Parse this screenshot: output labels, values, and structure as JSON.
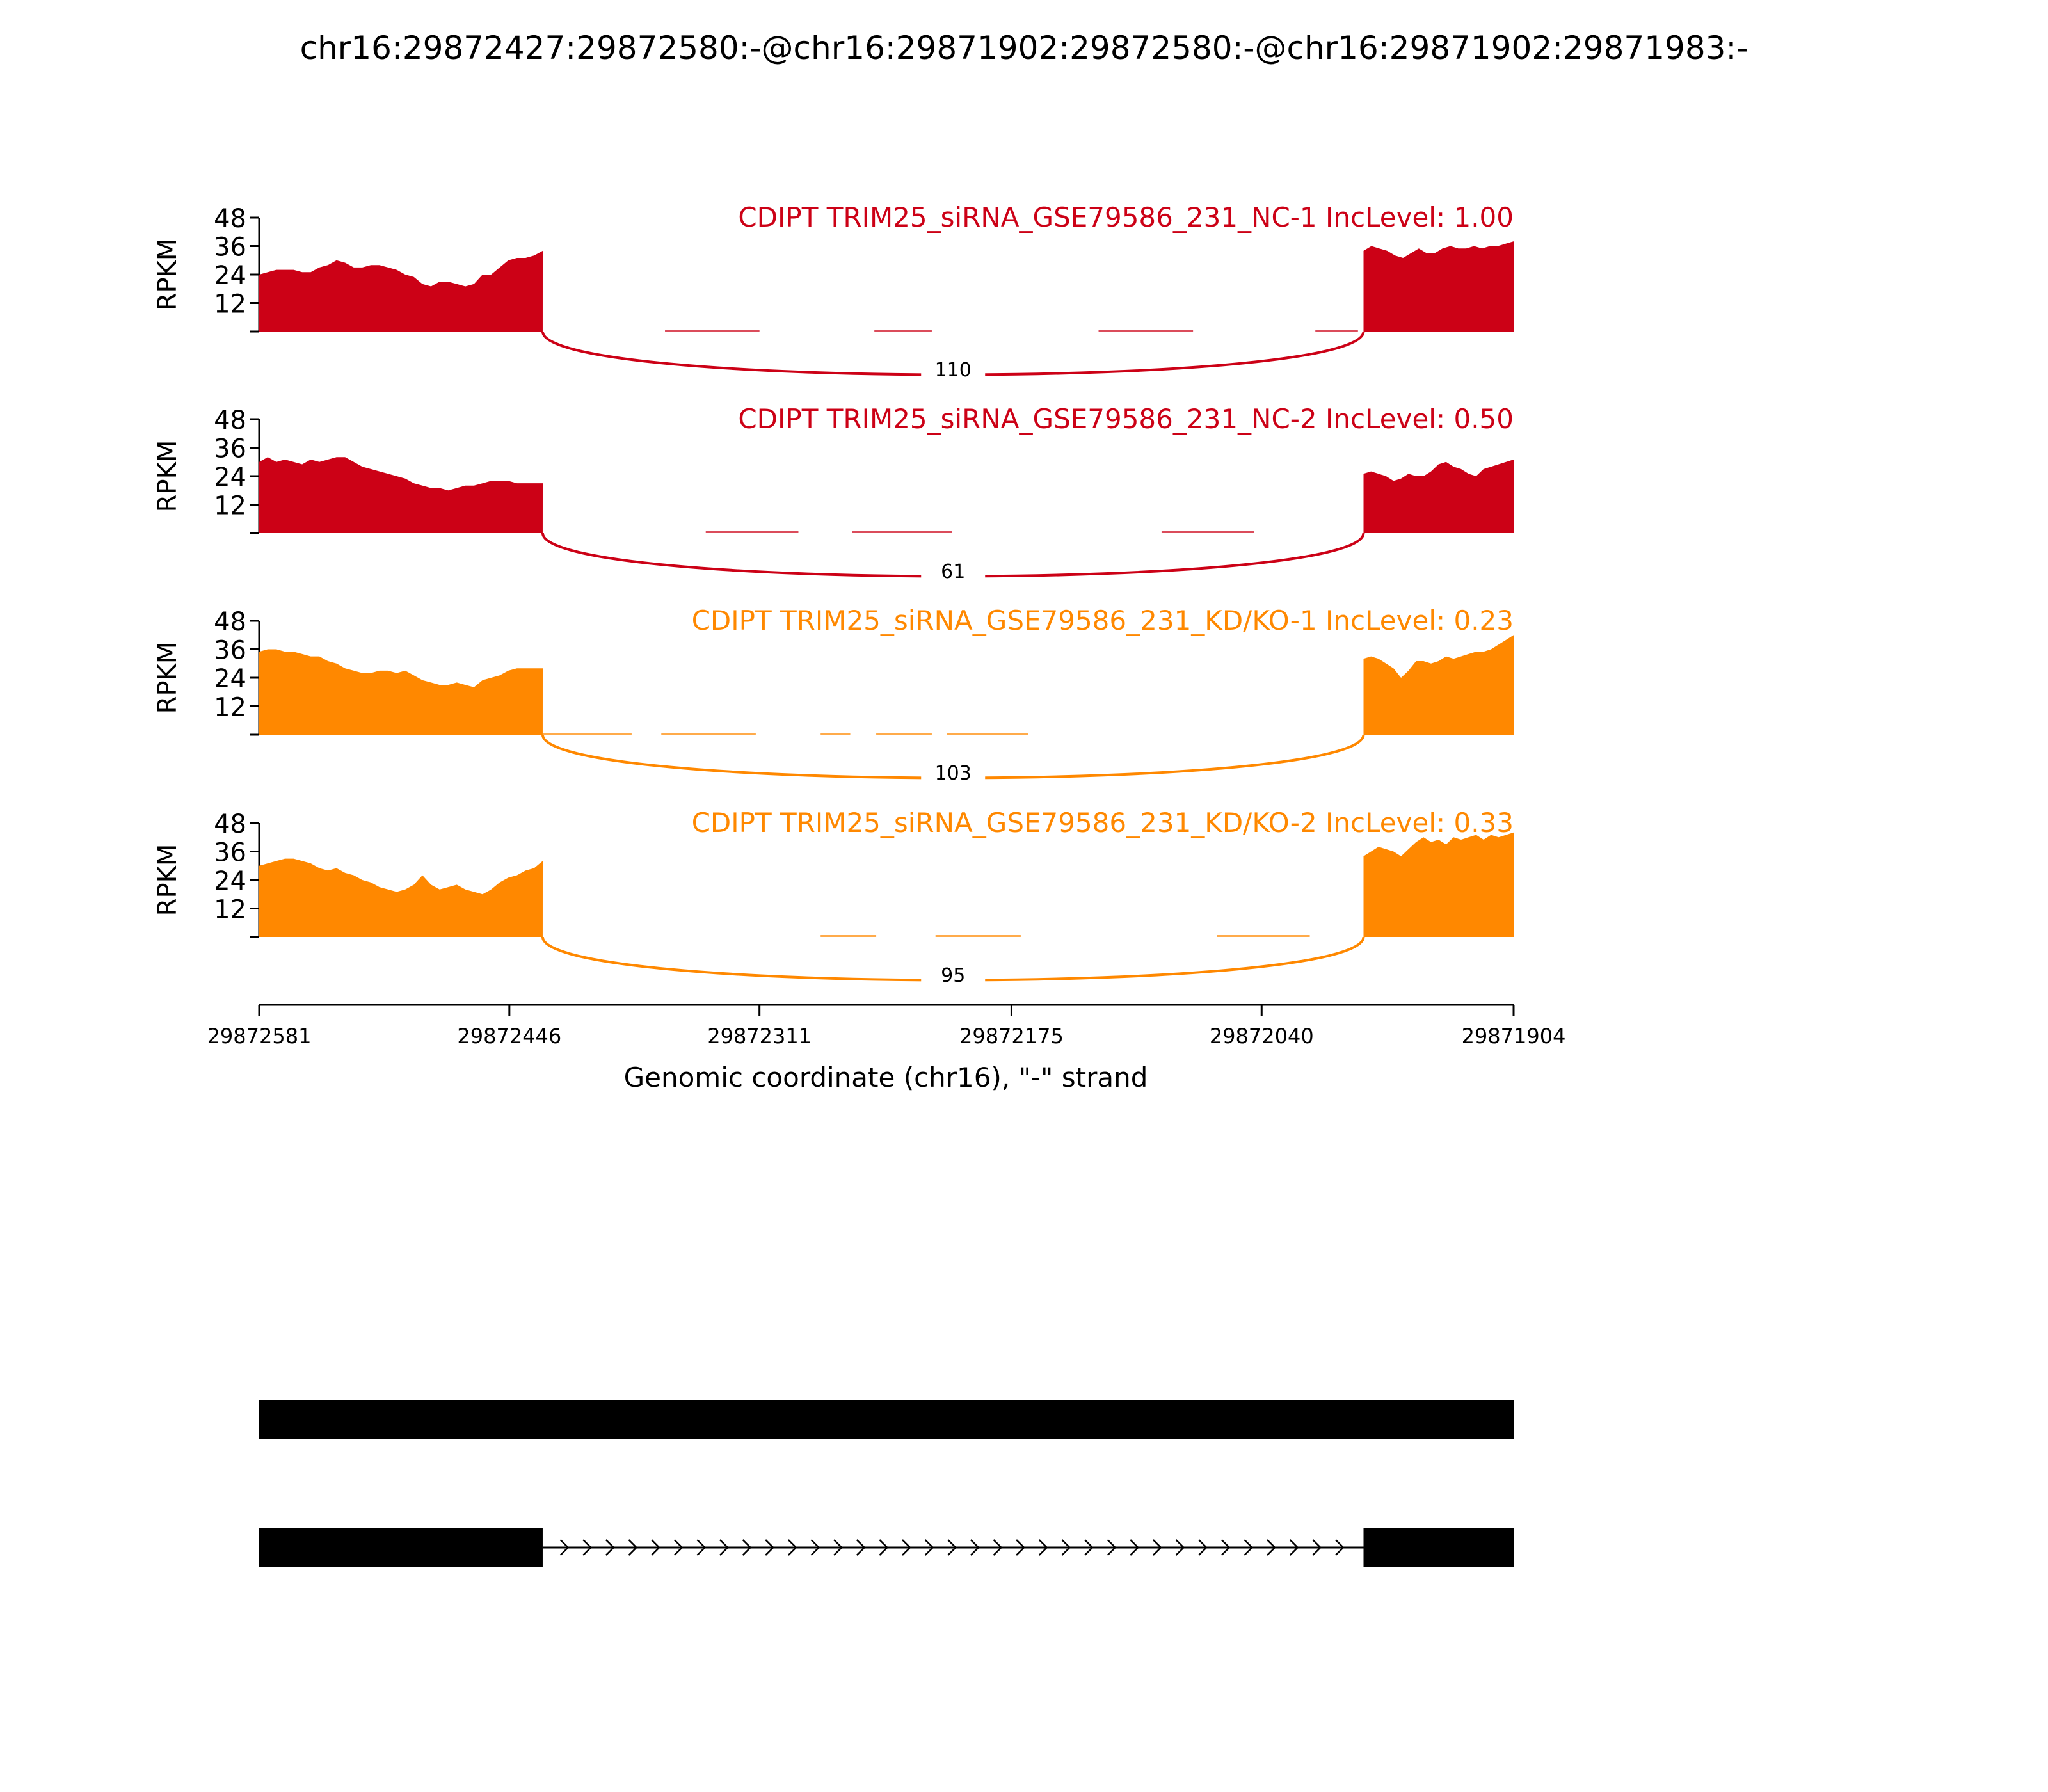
{
  "title": "chr16:29872427:29872580:-@chr16:29871902:29872580:-@chr16:29871902:29871983:-",
  "colors": {
    "nc": "#cc0116",
    "kd": "#ff8800",
    "axis": "#000000",
    "gene": "#000000"
  },
  "chart_data": {
    "type": "area",
    "ylabel": "RPKM",
    "ylim": [
      0,
      48
    ],
    "yticks": [
      "12",
      "24",
      "36",
      "48"
    ],
    "xlabel": "Genomic coordinate (chr16), \"-\" strand",
    "xlim": [
      29872581,
      29871904
    ],
    "xticks": [
      "29872581",
      "29872446",
      "29872311",
      "29872175",
      "29872040",
      "29871904"
    ],
    "exons": [
      {
        "start": 29872581,
        "end": 29872428
      },
      {
        "start": 29871985,
        "end": 29871904
      }
    ],
    "tracks": [
      {
        "label": "CDIPT TRIM25_siRNA_GSE79586_231_NC-1 IncLevel: 1.00",
        "color_key": "nc",
        "junction_count": "110",
        "left": [
          24,
          25,
          26,
          26,
          26,
          25,
          25,
          27,
          28,
          30,
          29,
          27,
          27,
          28,
          28,
          27,
          26,
          24,
          23,
          20,
          19,
          21,
          21,
          20,
          19,
          20,
          24,
          24,
          27,
          30,
          31,
          31,
          32,
          34
        ],
        "right": [
          34,
          36,
          35,
          34,
          32,
          31,
          33,
          35,
          33,
          33,
          35,
          36,
          35,
          35,
          36,
          35,
          36,
          36,
          37,
          38
        ],
        "low_segments": [
          [
            29872362,
            29872311
          ],
          [
            29872249,
            29872218
          ],
          [
            29872128,
            29872077
          ],
          [
            29872011,
            29871988
          ]
        ]
      },
      {
        "label": "CDIPT TRIM25_siRNA_GSE79586_231_NC-2 IncLevel: 0.50",
        "color_key": "nc",
        "junction_count": "61",
        "left": [
          30,
          32,
          30,
          31,
          30,
          29,
          31,
          30,
          31,
          32,
          32,
          30,
          28,
          27,
          26,
          25,
          24,
          23,
          21,
          20,
          19,
          19,
          18,
          19,
          20,
          20,
          21,
          22,
          22,
          22,
          21,
          21,
          21,
          21
        ],
        "right": [
          25,
          26,
          25,
          24,
          22,
          23,
          25,
          24,
          24,
          26,
          29,
          30,
          28,
          27,
          25,
          24,
          27,
          28,
          29,
          30,
          31
        ],
        "low_segments": [
          [
            29872340,
            29872290
          ],
          [
            29872261,
            29872207
          ],
          [
            29872094,
            29872044
          ]
        ]
      },
      {
        "label": "CDIPT TRIM25_siRNA_GSE79586_231_KD/KO-1 IncLevel: 0.23",
        "color_key": "kd",
        "junction_count": "103",
        "left": [
          35,
          36,
          36,
          35,
          35,
          34,
          33,
          33,
          31,
          30,
          28,
          27,
          26,
          26,
          27,
          27,
          26,
          27,
          25,
          23,
          22,
          21,
          21,
          22,
          21,
          20,
          23,
          24,
          25,
          27,
          28,
          28,
          28,
          28
        ],
        "right": [
          32,
          33,
          32,
          30,
          28,
          24,
          27,
          31,
          31,
          30,
          31,
          33,
          32,
          33,
          34,
          35,
          35,
          36,
          38,
          40,
          42
        ],
        "low_segments": [
          [
            29872428,
            29872380
          ],
          [
            29872364,
            29872313
          ],
          [
            29872278,
            29872262
          ],
          [
            29872248,
            29872218
          ],
          [
            29872210,
            29872166
          ]
        ]
      },
      {
        "label": "CDIPT TRIM25_siRNA_GSE79586_231_KD/KO-2 IncLevel: 0.33",
        "color_key": "kd",
        "junction_count": "95",
        "left": [
          30,
          31,
          32,
          33,
          33,
          32,
          31,
          29,
          28,
          29,
          27,
          26,
          24,
          23,
          21,
          20,
          19,
          20,
          22,
          26,
          22,
          20,
          21,
          22,
          20,
          19,
          18,
          20,
          23,
          25,
          26,
          28,
          29,
          32
        ],
        "right": [
          34,
          36,
          38,
          37,
          36,
          34,
          37,
          40,
          42,
          40,
          41,
          39,
          42,
          41,
          42,
          43,
          41,
          43,
          42,
          43,
          44
        ],
        "low_segments": [
          [
            29872278,
            29872248
          ],
          [
            29872216,
            29872170
          ],
          [
            29872064,
            29872014
          ]
        ]
      }
    ]
  }
}
